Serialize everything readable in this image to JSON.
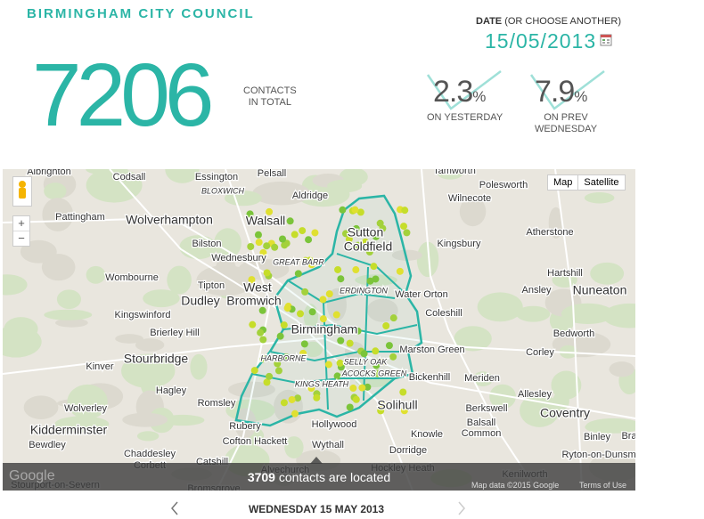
{
  "header": {
    "title": "BIRMINGHAM CITY COUNCIL",
    "date_label": "DATE",
    "date_hint": "(OR CHOOSE ANOTHER)",
    "date": "15/05/2013"
  },
  "total": {
    "value": 7206,
    "label_1": "CONTACTS",
    "label_2": "IN TOTAL"
  },
  "stats": [
    {
      "value": 2.3,
      "unit": "%",
      "label_1": "ON YESTERDAY"
    },
    {
      "value": 7.9,
      "unit": "%",
      "label_1": "ON PREV",
      "label_2": "WEDNESDAY"
    }
  ],
  "map": {
    "buttons": [
      "Map",
      "Satellite"
    ],
    "zoom_in": "+",
    "zoom_out": "−",
    "places": [
      "Albrighton",
      "Codsall",
      "Essington",
      "Pelsall",
      "Tamworth",
      "Polesworth",
      "BLOXWICH",
      "Aldridge",
      "Wilnecote",
      "Pattingham",
      "Wolverhampton",
      "Walsall",
      "Sutton",
      "Coldfield",
      "Atherstone",
      "Kingsbury",
      "Bilston",
      "Wednesbury",
      "GREAT BARR",
      "Hartshill",
      "Wombourne",
      "Tipton",
      "West",
      "Bromwich",
      "Dudley",
      "ERDINGTON",
      "Water Orton",
      "Ansley",
      "Nuneaton",
      "Kingswinford",
      "Coleshill",
      "Birmingham",
      "Brierley Hill",
      "Bedworth",
      "Stourbridge",
      "Marston Green",
      "Corley",
      "Kinver",
      "SELLY OAK",
      "Hagley",
      "ACOCKS GREEN",
      "Bickenhill",
      "Meriden",
      "KINGS HEATH",
      "Allesley",
      "Romsley",
      "Solihull",
      "HARBORNE",
      "Wolverley",
      "Berkswell",
      "Coventry",
      "Kidderminster",
      "Rubery",
      "Hollywood",
      "Knowle",
      "Balsall",
      "Common",
      "Bra",
      "Bewdley",
      "Chaddesley",
      "Corbett",
      "Cofton Hackett",
      "Wythall",
      "Dorridge",
      "Binley",
      "Ryton-on-Dunsmore",
      "Catshill",
      "Alvechurch",
      "Hockley Heath",
      "Kenilworth",
      "Stourport-on-Severn",
      "Bromsgrove"
    ],
    "logo": "Google",
    "attribution": "Map data ©2015 Google",
    "terms": "Terms of Use"
  },
  "overlay": {
    "count": "3709",
    "text": "contacts are located"
  },
  "nav": {
    "date": "WEDNESDAY 15 MAY 2013"
  }
}
